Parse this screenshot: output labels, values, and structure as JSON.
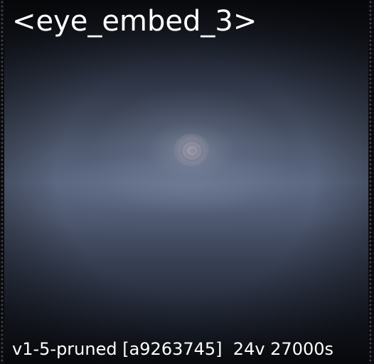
{
  "title": "<eye_embed_3>",
  "footer": "v1-5-pruned [a9263745]  24v 27000s",
  "colors": {
    "background_dark": "#0b0c10",
    "background_mid": "#5b6780",
    "text": "#ffffff"
  }
}
